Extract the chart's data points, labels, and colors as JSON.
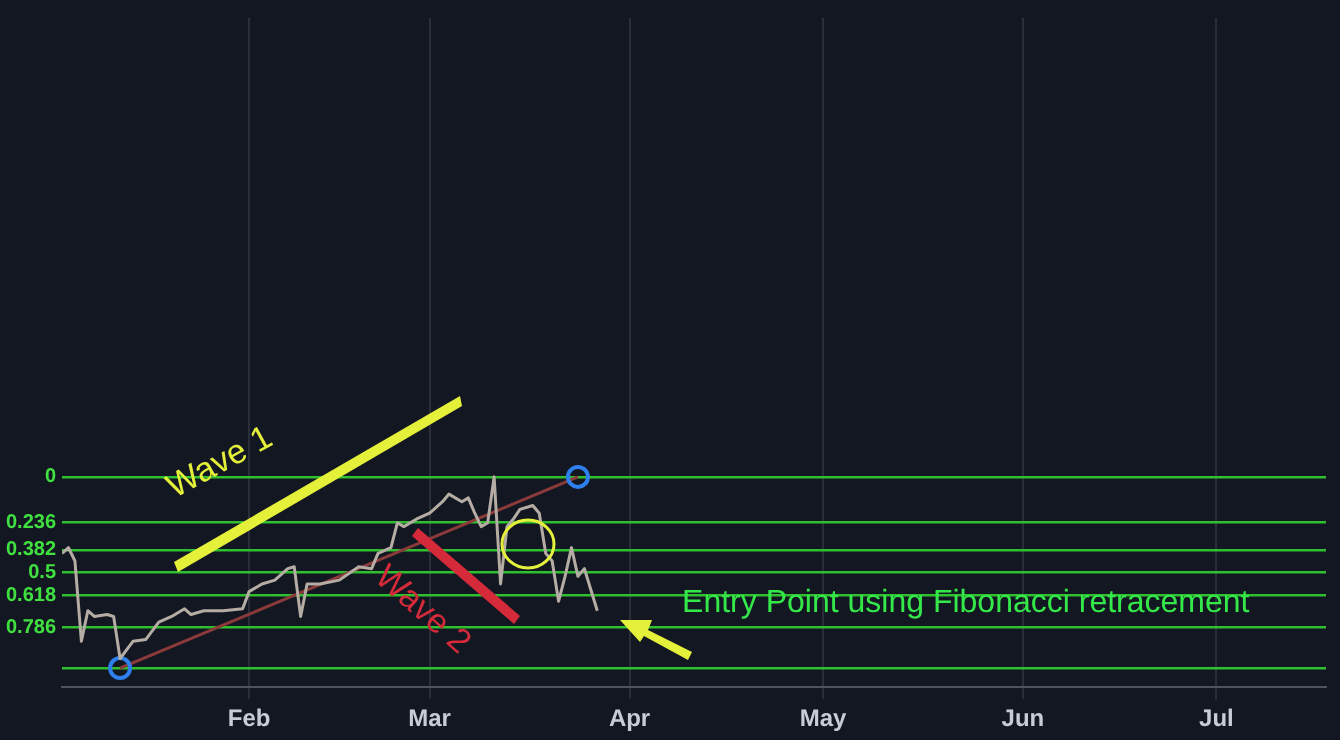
{
  "chart_data": {
    "type": "line",
    "x": [
      "--01-03",
      "--01-04",
      "--01-05",
      "--01-06",
      "--01-07",
      "--01-08",
      "--01-10",
      "--01-11",
      "--01-12",
      "--01-14",
      "--01-16",
      "--01-18",
      "--01-20",
      "--01-22",
      "--01-23",
      "--01-25",
      "--01-28",
      "--01-31",
      "--02-01",
      "--02-03",
      "--02-05",
      "--02-07",
      "--02-08",
      "--02-09",
      "--02-10",
      "--02-12",
      "--02-15",
      "--02-18",
      "--02-20",
      "--02-21",
      "--02-23",
      "--02-24",
      "--02-25",
      "--02-27",
      "--03-01",
      "--03-03",
      "--03-04",
      "--03-06",
      "--03-07",
      "--03-08",
      "--03-09",
      "--03-10",
      "--03-11",
      "--03-12",
      "--03-13",
      "--03-14",
      "--03-15",
      "--03-17",
      "--03-18",
      "--03-19",
      "--03-20",
      "--03-21",
      "--03-22",
      "--03-23",
      "--03-24",
      "--03-25",
      "--03-26",
      "--03-27"
    ],
    "series": [
      {
        "color": "#b5aca4",
        "values": [
          0.4,
          0.37,
          0.44,
          0.86,
          0.7,
          0.73,
          0.72,
          0.73,
          0.95,
          0.86,
          0.85,
          0.76,
          0.73,
          0.69,
          0.72,
          0.7,
          0.7,
          0.69,
          0.6,
          0.56,
          0.54,
          0.48,
          0.47,
          0.73,
          0.56,
          0.56,
          0.54,
          0.47,
          0.48,
          0.4,
          0.37,
          0.24,
          0.26,
          0.22,
          0.19,
          0.13,
          0.09,
          0.13,
          0.11,
          0.19,
          0.26,
          0.24,
          0,
          0.56,
          0.26,
          0.22,
          0.17,
          0.15,
          0.19,
          0.4,
          0.44,
          0.65,
          0.52,
          0.37,
          0.52,
          0.48,
          0.59,
          0.7
        ],
        "marker": "none"
      },
      {
        "type": "line",
        "x": [
          "--01-12",
          "--03-24"
        ],
        "values": [
          1,
          0
        ],
        "color": "#8b3a3a",
        "marker": "circle"
      }
    ],
    "xlim": [
      "--01-03",
      "--07-18"
    ],
    "xticks": [
      {
        "value": "--02-01",
        "label": "Feb"
      },
      {
        "value": "--03-01",
        "label": "Mar"
      },
      {
        "value": "--04-01",
        "label": "Apr"
      },
      {
        "value": "--05-01",
        "label": "May"
      },
      {
        "value": "--06-01",
        "label": "Jun"
      },
      {
        "value": "--07-01",
        "label": "Jul"
      }
    ],
    "ylim": [
      1.1,
      -2.4
    ],
    "yticks": [
      0,
      0.236,
      0.382,
      0.5,
      0.618,
      0.786,
      {
        "value": 1,
        "label": null
      }
    ],
    "grid": true,
    "annotations": [
      "Wave 1",
      "Wave 2",
      "Entry Point using Fibonacci retracement"
    ]
  }
}
